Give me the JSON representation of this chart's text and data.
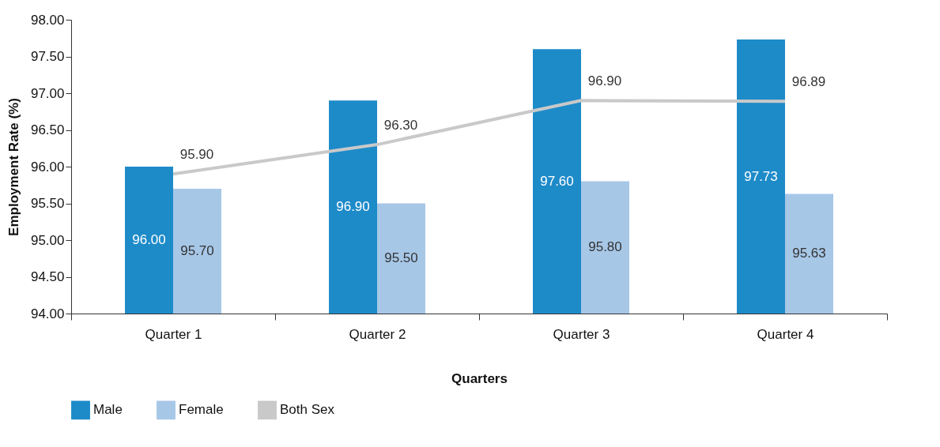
{
  "chart_data": {
    "type": "bar",
    "xlabel": "Quarters",
    "ylabel": "Employment Rate (%)",
    "categories": [
      "Quarter 1",
      "Quarter 2",
      "Quarter 3",
      "Quarter 4"
    ],
    "series": [
      {
        "name": "Male",
        "color": "#1e8bc9",
        "values": [
          96.0,
          96.9,
          97.6,
          97.73
        ],
        "value_labels": [
          "96.00",
          "96.90",
          "97.60",
          "97.73"
        ]
      },
      {
        "name": "Female",
        "color": "#a7c7e7",
        "values": [
          95.7,
          95.5,
          95.8,
          95.63
        ],
        "value_labels": [
          "95.70",
          "95.50",
          "95.80",
          "95.63"
        ]
      },
      {
        "name": "Both Sex",
        "type": "line",
        "color": "#c9c9c9",
        "values": [
          95.9,
          96.3,
          96.9,
          96.89
        ],
        "value_labels": [
          "95.90",
          "96.30",
          "96.90",
          "96.89"
        ]
      }
    ],
    "ylim": [
      94,
      98
    ],
    "yticks": [
      {
        "value": 94,
        "label": "94.00"
      },
      {
        "value": 94.5,
        "label": "94.50"
      },
      {
        "value": 95,
        "label": "95.00"
      },
      {
        "value": 95.5,
        "label": "95.50"
      },
      {
        "value": 96,
        "label": "96.00"
      },
      {
        "value": 96.5,
        "label": "96.50"
      },
      {
        "value": 97,
        "label": "97.00"
      },
      {
        "value": 97.5,
        "label": "97.50"
      },
      {
        "value": 98,
        "label": "98.00"
      }
    ],
    "legend": "bottom"
  }
}
